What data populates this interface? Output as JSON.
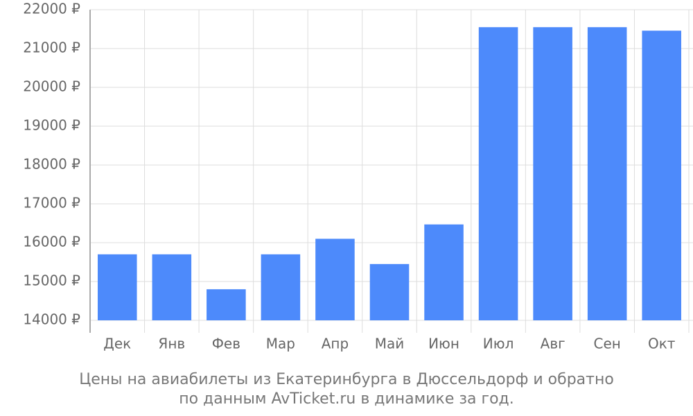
{
  "chart_data": {
    "type": "bar",
    "title": [
      "Цены на авиабилеты из Екатеринбурга в Дюссельдорф и обратно",
      "по данным AvTicket.ru в динамике за год."
    ],
    "categories": [
      "Дек",
      "Янв",
      "Фев",
      "Мар",
      "Апр",
      "Май",
      "Июн",
      "Июл",
      "Авг",
      "Сен",
      "Окт"
    ],
    "values": [
      15700,
      15700,
      14800,
      15700,
      16100,
      15450,
      16470,
      21550,
      21550,
      21550,
      21460
    ],
    "color": "#4d8afb",
    "ylim": [
      14000,
      22000
    ],
    "yticks": [
      {
        "value": 14000,
        "label": "14000 ₽"
      },
      {
        "value": 15000,
        "label": "15000 ₽"
      },
      {
        "value": 16000,
        "label": "16000 ₽"
      },
      {
        "value": 17000,
        "label": "17000 ₽"
      },
      {
        "value": 18000,
        "label": "18000 ₽"
      },
      {
        "value": 19000,
        "label": "19000 ₽"
      },
      {
        "value": 20000,
        "label": "20000 ₽"
      },
      {
        "value": 21000,
        "label": "21000 ₽"
      },
      {
        "value": 22000,
        "label": "22000 ₽"
      }
    ],
    "grid": true
  }
}
